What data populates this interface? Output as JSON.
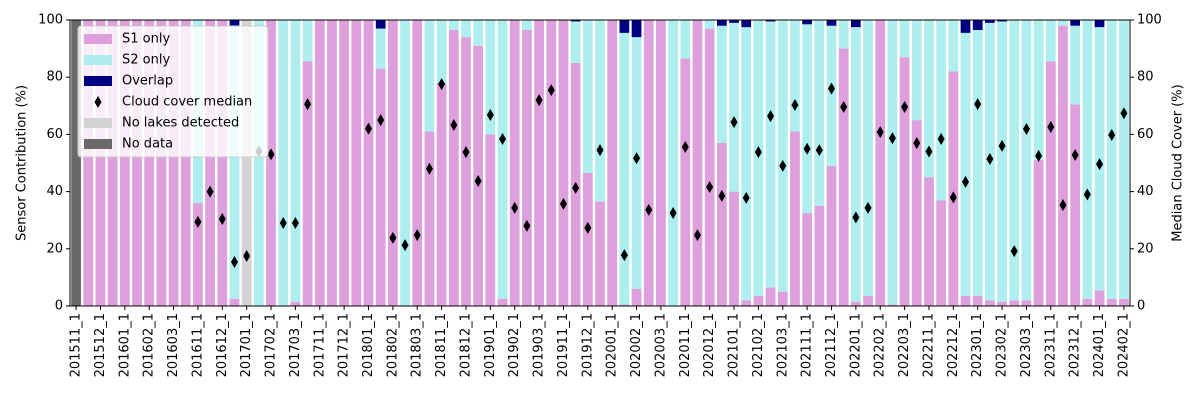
{
  "chart_data": {
    "type": "bar",
    "stacked": true,
    "legend": "upper left",
    "ylabel": "Sensor Contribution (%)",
    "y2label": "Median Cloud Cover (%)",
    "ylim": [
      0,
      100
    ],
    "yticks": [
      0,
      20,
      40,
      60,
      80,
      100
    ],
    "y2lim": [
      0,
      100
    ],
    "y2ticks": [
      0,
      20,
      40,
      60,
      80,
      100
    ],
    "categories": [
      "201511_1",
      null,
      "201512_1",
      null,
      "201601_1",
      null,
      "201602_1",
      null,
      "201603_1",
      null,
      "201611_1",
      null,
      "201612_1",
      null,
      "201701_1",
      null,
      "201702_1",
      null,
      "201703_1",
      null,
      "201711_1",
      null,
      "201712_1",
      null,
      "201801_1",
      null,
      "201802_1",
      null,
      "201803_1",
      null,
      "201811_1",
      null,
      "201812_1",
      null,
      "201901_1",
      null,
      "201902_1",
      null,
      "201903_1",
      null,
      "201911_1",
      null,
      "201912_1",
      null,
      "202001_1",
      null,
      "202002_1",
      null,
      "202003_1",
      null,
      "202011_1",
      null,
      "202012_1",
      null,
      "202101_1",
      null,
      "202102_1",
      null,
      "202103_1",
      null,
      "202111_1",
      null,
      "202112_1",
      null,
      "202201_1",
      null,
      "202202_1",
      null,
      "202203_1",
      null,
      "202211_1",
      null,
      "202212_1",
      null,
      "202301_1",
      null,
      "202302_1",
      null,
      "202303_1",
      null,
      "202311_1",
      null,
      "202312_1",
      null,
      "202401_1",
      null,
      "202402_1"
    ],
    "series": [
      {
        "name": "S1 only",
        "type": "bar",
        "color": "#dda0dd",
        "values": [
          0,
          100,
          100,
          100,
          100,
          100,
          100,
          100,
          100,
          100,
          36,
          100,
          100,
          2.5,
          0,
          0,
          100,
          0,
          1.5,
          85.5,
          100,
          100,
          100,
          100,
          100,
          83,
          100,
          0,
          100,
          61,
          78,
          96.5,
          94,
          91,
          60,
          2.5,
          100,
          96.5,
          100,
          100,
          100,
          85,
          46.5,
          36.5,
          100,
          0.5,
          6,
          100,
          100,
          0,
          86.5,
          100,
          97,
          57,
          40,
          2,
          3.5,
          6.5,
          5,
          61,
          32.5,
          35,
          49,
          90,
          1.5,
          3.5,
          100,
          0.5,
          87,
          65,
          45,
          37,
          82,
          3.5,
          3.5,
          2,
          1.5,
          2,
          2,
          51,
          85.5,
          98,
          70.5,
          2.5,
          5.5,
          2.5,
          2.5
        ]
      },
      {
        "name": "S2 only",
        "type": "bar",
        "color": "#afeeee",
        "values": [
          0,
          0,
          0,
          0,
          0,
          0,
          0,
          0,
          0,
          0,
          64,
          0,
          0,
          95.5,
          0,
          100,
          0,
          100,
          98.5,
          14.5,
          0,
          0,
          0,
          0,
          0,
          14,
          0,
          100,
          0,
          39,
          22,
          3.5,
          6,
          9,
          40,
          97.5,
          0,
          3.5,
          0,
          0,
          0,
          14.5,
          53.5,
          63.5,
          0,
          95,
          88,
          0,
          0,
          100,
          13.5,
          0,
          3,
          41,
          59,
          95.5,
          96.5,
          93,
          95,
          39,
          66,
          65,
          49,
          10,
          96,
          96.5,
          0,
          99.5,
          13,
          35,
          55,
          63,
          18,
          92,
          93,
          97,
          98,
          98,
          98,
          49,
          14.5,
          2,
          27.5,
          97.5,
          92,
          97.5,
          97.5
        ]
      },
      {
        "name": "Overlap",
        "type": "bar",
        "color": "#000080",
        "values": [
          0,
          0,
          0,
          0,
          0,
          0,
          0,
          0,
          0,
          0,
          0,
          0,
          0,
          2,
          0,
          0,
          0,
          0,
          0,
          0,
          0,
          0,
          0,
          0,
          0,
          3,
          0,
          0,
          0,
          0,
          0,
          0,
          0,
          0,
          0,
          0,
          0,
          0,
          0,
          0,
          0,
          0.5,
          0,
          0,
          0,
          4.5,
          6,
          0,
          0,
          0,
          0,
          0,
          0,
          2,
          1,
          2.5,
          0,
          0.5,
          0,
          0,
          1.5,
          0,
          2,
          0,
          2.5,
          0,
          0,
          0,
          0,
          0,
          0,
          0,
          0,
          4.5,
          3.5,
          1,
          0.5,
          0,
          0,
          0,
          0,
          0,
          2,
          0,
          2.5,
          0,
          0
        ]
      },
      {
        "name": "Cloud cover median",
        "type": "scatter",
        "axis": "y2",
        "color": "#000000",
        "values": [
          null,
          null,
          null,
          null,
          null,
          null,
          null,
          null,
          null,
          null,
          29.4,
          40,
          30.4,
          15.4,
          17.5,
          54,
          53,
          29,
          29,
          70.6,
          null,
          null,
          null,
          null,
          62,
          65,
          23.8,
          21.3,
          24.8,
          48,
          77.6,
          63.3,
          53.8,
          43.7,
          66.8,
          58.4,
          34.3,
          28,
          72,
          75.5,
          35.7,
          41.3,
          27.3,
          54.5,
          null,
          17.8,
          51.7,
          33.6,
          null,
          32.5,
          55.6,
          24.8,
          41.6,
          38.5,
          64.3,
          37.8,
          53.8,
          66.4,
          49,
          70.3,
          55,
          54.5,
          76,
          69.6,
          31,
          34.3,
          60.8,
          58.7,
          69.6,
          57,
          54,
          58.4,
          38,
          43.4,
          70.6,
          51.4,
          56,
          19.2,
          61.9,
          52.5,
          62.6,
          35.3,
          52.8,
          39,
          49.6,
          59.8,
          67.4
        ]
      },
      {
        "name": "No lakes detected",
        "type": "bar",
        "color": "#d3d3d3",
        "values": [
          0,
          0,
          0,
          0,
          0,
          0,
          0,
          0,
          0,
          0,
          0,
          0,
          0,
          0,
          100,
          0,
          0,
          0,
          0,
          0,
          0,
          0,
          0,
          0,
          0,
          0,
          0,
          0,
          0,
          0,
          0,
          0,
          0,
          0,
          0,
          0,
          0,
          0,
          0,
          0,
          0,
          0,
          0,
          0,
          0,
          0,
          0,
          0,
          0,
          0,
          0,
          0,
          0,
          0,
          0,
          0,
          0,
          0,
          0,
          0,
          0,
          0,
          0,
          0,
          0,
          0,
          0,
          0,
          0,
          0,
          0,
          0,
          0,
          0,
          0,
          0,
          0,
          0,
          0,
          0,
          0,
          0,
          0,
          0,
          0,
          0,
          0
        ]
      },
      {
        "name": "No data",
        "type": "bar",
        "color": "#696969",
        "values": [
          100,
          0,
          0,
          0,
          0,
          0,
          0,
          0,
          0,
          0,
          0,
          0,
          0,
          0,
          0,
          0,
          0,
          0,
          0,
          0,
          0,
          0,
          0,
          0,
          0,
          0,
          0,
          0,
          0,
          0,
          0,
          0,
          0,
          0,
          0,
          0,
          0,
          0,
          0,
          0,
          0,
          0,
          0,
          0,
          0,
          0,
          0,
          0,
          0,
          0,
          0,
          0,
          0,
          0,
          0,
          0,
          0,
          0,
          0,
          0,
          0,
          0,
          0,
          0,
          0,
          0,
          0,
          0,
          0,
          0,
          0,
          0,
          0,
          0,
          0,
          0,
          0,
          0,
          0,
          0,
          0,
          0,
          0,
          0,
          0,
          0,
          0
        ]
      }
    ]
  }
}
